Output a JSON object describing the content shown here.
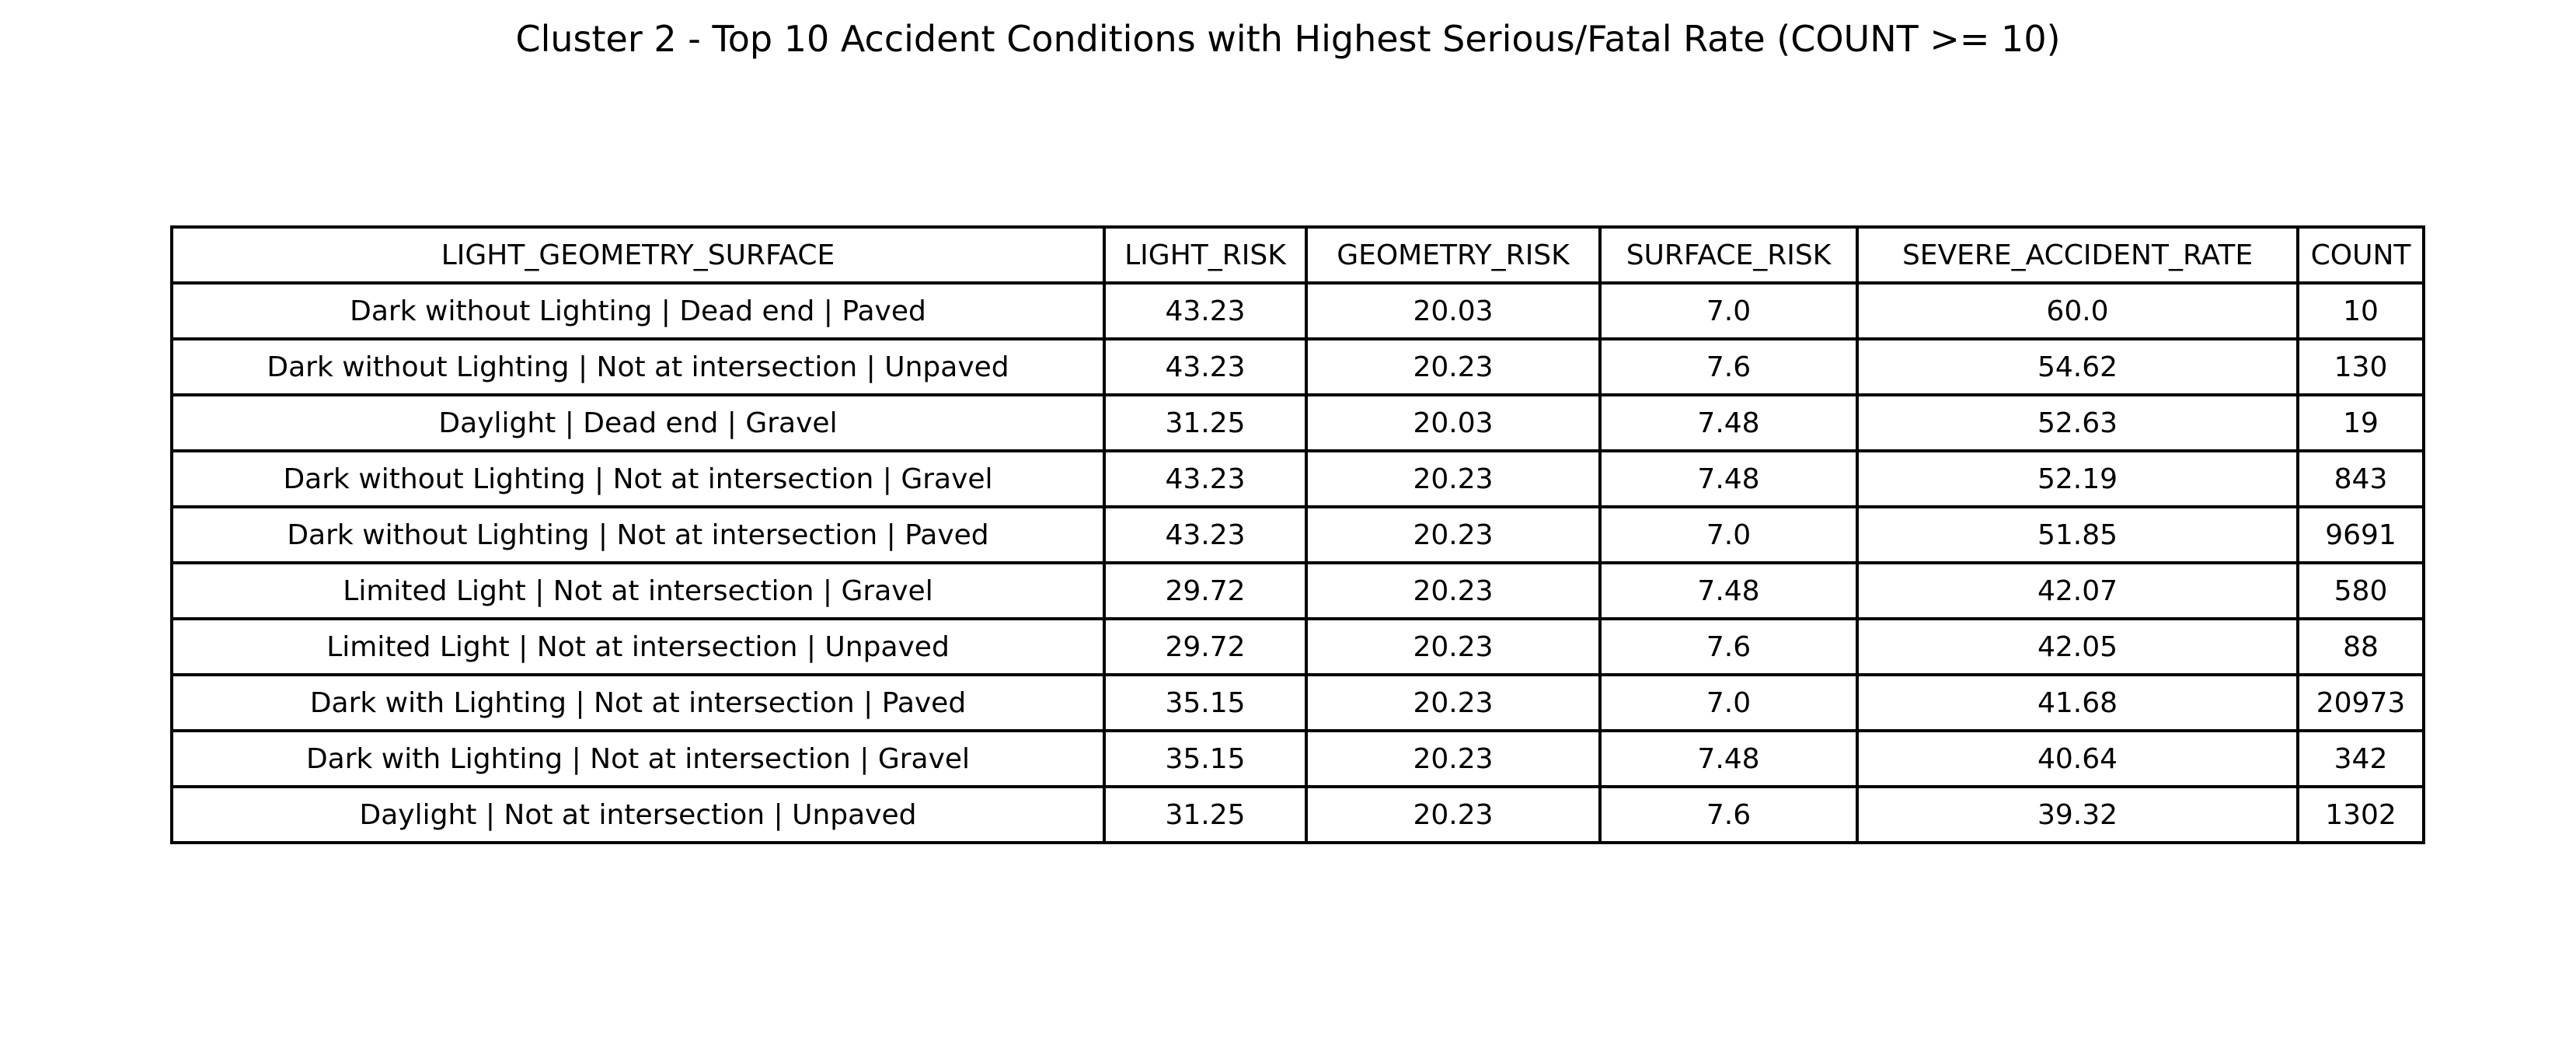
{
  "chart_data": {
    "type": "table",
    "title": "Cluster 2 - Top 10 Accident Conditions with Highest Serious/Fatal Rate (COUNT >= 10)",
    "columns": [
      "LIGHT_GEOMETRY_SURFACE",
      "LIGHT_RISK",
      "GEOMETRY_RISK",
      "SURFACE_RISK",
      "SEVERE_ACCIDENT_RATE",
      "COUNT"
    ],
    "rows": [
      [
        "Dark without Lighting | Dead end | Paved",
        "43.23",
        "20.03",
        "7.0",
        "60.0",
        "10"
      ],
      [
        "Dark without Lighting | Not at intersection | Unpaved",
        "43.23",
        "20.23",
        "7.6",
        "54.62",
        "130"
      ],
      [
        "Daylight | Dead end | Gravel",
        "31.25",
        "20.03",
        "7.48",
        "52.63",
        "19"
      ],
      [
        "Dark without Lighting | Not at intersection | Gravel",
        "43.23",
        "20.23",
        "7.48",
        "52.19",
        "843"
      ],
      [
        "Dark without Lighting | Not at intersection | Paved",
        "43.23",
        "20.23",
        "7.0",
        "51.85",
        "9691"
      ],
      [
        "Limited Light | Not at intersection | Gravel",
        "29.72",
        "20.23",
        "7.48",
        "42.07",
        "580"
      ],
      [
        "Limited Light | Not at intersection | Unpaved",
        "29.72",
        "20.23",
        "7.6",
        "42.05",
        "88"
      ],
      [
        "Dark with Lighting | Not at intersection | Paved",
        "35.15",
        "20.23",
        "7.0",
        "41.68",
        "20973"
      ],
      [
        "Dark with Lighting | Not at intersection | Gravel",
        "35.15",
        "20.23",
        "7.48",
        "40.64",
        "342"
      ],
      [
        "Daylight | Not at intersection | Unpaved",
        "31.25",
        "20.23",
        "7.6",
        "39.32",
        "1302"
      ]
    ]
  }
}
